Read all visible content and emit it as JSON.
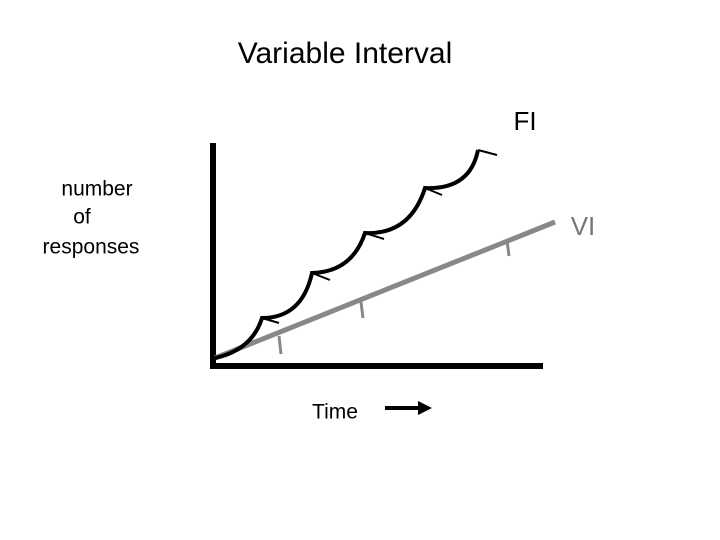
{
  "title": "Variable Interval",
  "y_label": [
    "number",
    "of",
    "responses"
  ],
  "x_label": "Time",
  "curves": {
    "fi": "FI",
    "vi": "VI"
  }
}
